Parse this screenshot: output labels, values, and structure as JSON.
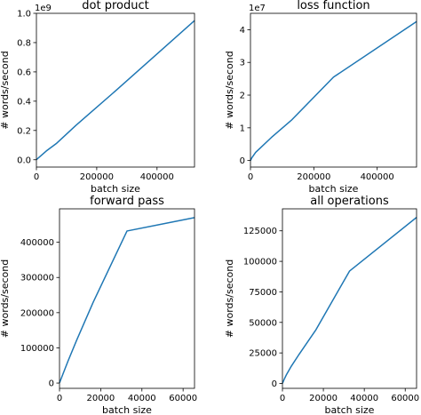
{
  "chart_data": [
    {
      "type": "line",
      "title": "dot product",
      "xlabel": "batch size",
      "ylabel": "# words/second",
      "offset_text": "1e9",
      "xlim": [
        0,
        524288
      ],
      "ylim": [
        -0.05,
        1.0
      ],
      "x_ticks": [
        0,
        200000,
        400000
      ],
      "x_tick_labels": [
        "0",
        "200000",
        "400000"
      ],
      "y_ticks": [
        0.0,
        0.2,
        0.4,
        0.6,
        0.8,
        1.0
      ],
      "y_tick_labels": [
        "0.0",
        "0.2",
        "0.4",
        "0.6",
        "0.8",
        "1.0"
      ],
      "series": [
        {
          "color": "#1f77b4",
          "x": [
            1,
            1024,
            4096,
            16384,
            32768,
            65536,
            131072,
            262144,
            524288
          ],
          "y": [
            0.0005,
            0.002,
            0.008,
            0.03,
            0.06,
            0.11,
            0.235,
            0.47,
            0.95
          ]
        }
      ]
    },
    {
      "type": "line",
      "title": "loss function",
      "xlabel": "batch size",
      "ylabel": "# words/second",
      "offset_text": "1e7",
      "xlim": [
        0,
        524288
      ],
      "ylim": [
        -0.2,
        4.5
      ],
      "x_ticks": [
        0,
        200000,
        400000
      ],
      "x_tick_labels": [
        "0",
        "200000",
        "400000"
      ],
      "y_ticks": [
        0,
        1,
        2,
        3,
        4
      ],
      "y_tick_labels": [
        "0",
        "1",
        "2",
        "3",
        "4"
      ],
      "series": [
        {
          "color": "#1f77b4",
          "x": [
            1,
            1024,
            4096,
            16384,
            32768,
            65536,
            131072,
            262144,
            524288
          ],
          "y": [
            0.0,
            0.02,
            0.08,
            0.25,
            0.4,
            0.7,
            1.25,
            2.55,
            4.25
          ]
        }
      ]
    },
    {
      "type": "line",
      "title": "forward pass",
      "xlabel": "batch size",
      "ylabel": "# words/second",
      "offset_text": "",
      "xlim": [
        0,
        65536
      ],
      "ylim": [
        -15000,
        495000
      ],
      "x_ticks": [
        0,
        20000,
        40000,
        60000
      ],
      "x_tick_labels": [
        "0",
        "20000",
        "40000",
        "60000"
      ],
      "y_ticks": [
        0,
        100000,
        200000,
        300000,
        400000
      ],
      "y_tick_labels": [
        "0",
        "100000",
        "200000",
        "300000",
        "400000"
      ],
      "series": [
        {
          "color": "#1f77b4",
          "x": [
            1,
            1024,
            4096,
            8192,
            16384,
            32768,
            65536
          ],
          "y": [
            500,
            16000,
            62000,
            120000,
            230000,
            432000,
            470000
          ]
        }
      ]
    },
    {
      "type": "line",
      "title": "all operations",
      "xlabel": "batch size",
      "ylabel": "# words/second",
      "offset_text": "",
      "xlim": [
        0,
        65536
      ],
      "ylim": [
        -4000,
        143000
      ],
      "x_ticks": [
        0,
        20000,
        40000,
        60000
      ],
      "x_tick_labels": [
        "0",
        "20000",
        "40000",
        "60000"
      ],
      "y_ticks": [
        0,
        25000,
        50000,
        75000,
        100000,
        125000
      ],
      "y_tick_labels": [
        "0",
        "25000",
        "50000",
        "75000",
        "100000",
        "125000"
      ],
      "series": [
        {
          "color": "#1f77b4",
          "x": [
            1,
            1024,
            2048,
            4096,
            8192,
            16384,
            32768,
            65536
          ],
          "y": [
            0,
            4000,
            7500,
            13500,
            24000,
            44000,
            92000,
            136000
          ]
        }
      ]
    }
  ]
}
